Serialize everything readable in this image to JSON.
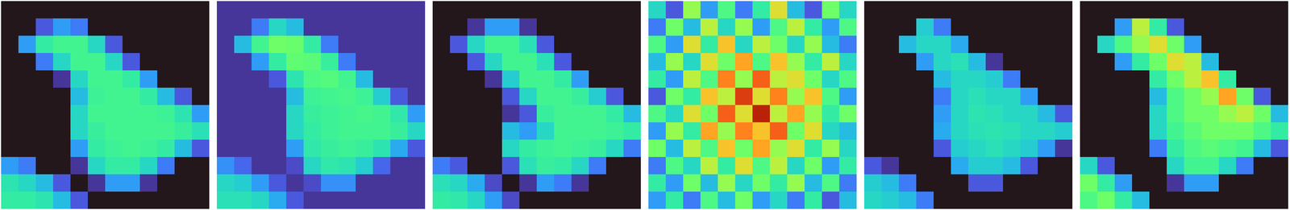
{
  "chart_data": [
    {
      "type": "heatmap",
      "color": "turbo",
      "color_range": [
        0,
        1
      ],
      "tick_labels": false,
      "cells": [
        [
          0,
          0,
          0,
          0,
          0,
          0,
          0,
          0,
          0,
          0,
          0,
          0
        ],
        [
          0,
          0,
          0.1,
          0.2,
          0.15,
          0,
          0,
          0,
          0,
          0,
          0,
          0
        ],
        [
          0,
          0.2,
          0.35,
          0.38,
          0.38,
          0.3,
          0.1,
          0,
          0,
          0,
          0,
          0
        ],
        [
          0,
          0,
          0.15,
          0.3,
          0.38,
          0.38,
          0.3,
          0.1,
          0,
          0,
          0,
          0
        ],
        [
          0,
          0,
          0,
          0.05,
          0.3,
          0.38,
          0.38,
          0.35,
          0.2,
          0,
          0,
          0
        ],
        [
          0,
          0,
          0,
          0,
          0.25,
          0.37,
          0.38,
          0.38,
          0.35,
          0.25,
          0.1,
          0
        ],
        [
          0,
          0,
          0,
          0,
          0.3,
          0.38,
          0.38,
          0.38,
          0.38,
          0.37,
          0.33,
          0.2
        ],
        [
          0,
          0,
          0,
          0,
          0.3,
          0.36,
          0.38,
          0.38,
          0.38,
          0.38,
          0.36,
          0.32
        ],
        [
          0,
          0,
          0,
          0,
          0.2,
          0.35,
          0.37,
          0.38,
          0.37,
          0.35,
          0.25,
          0.1
        ],
        [
          0.2,
          0.15,
          0,
          0,
          0.05,
          0.3,
          0.35,
          0.35,
          0.3,
          0.15,
          0,
          0
        ],
        [
          0.33,
          0.3,
          0.25,
          0.1,
          0,
          0.05,
          0.2,
          0.2,
          0.05,
          0,
          0,
          0
        ],
        [
          0.35,
          0.35,
          0.33,
          0.25,
          0.1,
          0,
          0,
          0,
          0,
          0,
          0,
          0
        ]
      ]
    },
    {
      "type": "heatmap",
      "color": "turbo",
      "color_range": [
        0,
        1
      ],
      "tick_labels": false,
      "cells": [
        [
          0.05,
          0.05,
          0.05,
          0.05,
          0.05,
          0.05,
          0.05,
          0.05,
          0.05,
          0.05,
          0.05,
          0.05
        ],
        [
          0.05,
          0.05,
          0.15,
          0.3,
          0.25,
          0.05,
          0.05,
          0.05,
          0.05,
          0.05,
          0.05,
          0.05
        ],
        [
          0.05,
          0.25,
          0.38,
          0.45,
          0.44,
          0.35,
          0.15,
          0.05,
          0.05,
          0.05,
          0.05,
          0.05
        ],
        [
          0.05,
          0.05,
          0.2,
          0.35,
          0.43,
          0.42,
          0.36,
          0.15,
          0.05,
          0.05,
          0.05,
          0.05
        ],
        [
          0.05,
          0.05,
          0.05,
          0.1,
          0.33,
          0.4,
          0.41,
          0.38,
          0.25,
          0.05,
          0.05,
          0.05
        ],
        [
          0.05,
          0.05,
          0.05,
          0.05,
          0.25,
          0.37,
          0.38,
          0.39,
          0.37,
          0.28,
          0.1,
          0.05
        ],
        [
          0.05,
          0.05,
          0.05,
          0.05,
          0.3,
          0.36,
          0.37,
          0.38,
          0.39,
          0.38,
          0.34,
          0.2
        ],
        [
          0.05,
          0.05,
          0.05,
          0.05,
          0.3,
          0.35,
          0.37,
          0.38,
          0.38,
          0.38,
          0.36,
          0.3
        ],
        [
          0.05,
          0.05,
          0.05,
          0.05,
          0.2,
          0.34,
          0.36,
          0.37,
          0.36,
          0.33,
          0.22,
          0.1
        ],
        [
          0.18,
          0.12,
          0.05,
          0.05,
          0.08,
          0.3,
          0.34,
          0.33,
          0.28,
          0.12,
          0.05,
          0.05
        ],
        [
          0.3,
          0.28,
          0.2,
          0.1,
          0.05,
          0.08,
          0.18,
          0.18,
          0.05,
          0.05,
          0.05,
          0.05
        ],
        [
          0.32,
          0.32,
          0.3,
          0.22,
          0.1,
          0.05,
          0.05,
          0.05,
          0.05,
          0.05,
          0.05,
          0.05
        ]
      ]
    },
    {
      "type": "heatmap",
      "color": "turbo",
      "color_range": [
        0,
        1
      ],
      "tick_labels": false,
      "cells": [
        [
          0,
          0,
          0,
          0,
          0,
          0,
          0,
          0,
          0,
          0,
          0,
          0
        ],
        [
          0,
          0,
          0.05,
          0.2,
          0.2,
          0.05,
          0,
          0,
          0,
          0,
          0,
          0
        ],
        [
          0,
          0.1,
          0.3,
          0.38,
          0.38,
          0.32,
          0.1,
          0,
          0,
          0,
          0,
          0
        ],
        [
          0,
          0,
          0.1,
          0.3,
          0.38,
          0.38,
          0.32,
          0.1,
          0,
          0,
          0,
          0
        ],
        [
          0,
          0,
          0,
          0.05,
          0.28,
          0.38,
          0.38,
          0.35,
          0.2,
          0,
          0,
          0
        ],
        [
          0,
          0,
          0,
          0,
          0.1,
          0.3,
          0.38,
          0.38,
          0.36,
          0.28,
          0.1,
          0
        ],
        [
          0,
          0,
          0,
          0,
          0.05,
          0.1,
          0.36,
          0.38,
          0.38,
          0.38,
          0.35,
          0.25
        ],
        [
          0,
          0,
          0,
          0,
          0.25,
          0.2,
          0.3,
          0.38,
          0.38,
          0.38,
          0.37,
          0.35
        ],
        [
          0,
          0,
          0,
          0,
          0.3,
          0.35,
          0.37,
          0.38,
          0.37,
          0.36,
          0.3,
          0.15
        ],
        [
          0.15,
          0.1,
          0,
          0,
          0.1,
          0.32,
          0.36,
          0.35,
          0.3,
          0.15,
          0,
          0
        ],
        [
          0.32,
          0.3,
          0.22,
          0.08,
          0,
          0.05,
          0.2,
          0.15,
          0.05,
          0,
          0,
          0
        ],
        [
          0.35,
          0.34,
          0.3,
          0.2,
          0.08,
          0,
          0,
          0,
          0,
          0,
          0,
          0
        ]
      ]
    },
    {
      "type": "heatmap",
      "color": "turbo",
      "color_range": [
        0,
        1
      ],
      "tick_labels": false,
      "cells": [
        [
          0.3,
          0.1,
          0.5,
          0.2,
          0.4,
          0.15,
          0.35,
          0.6,
          0.25,
          0.1,
          0.45,
          0.3
        ],
        [
          0.15,
          0.45,
          0.25,
          0.55,
          0.3,
          0.5,
          0.2,
          0.4,
          0.55,
          0.35,
          0.2,
          0.4
        ],
        [
          0.4,
          0.2,
          0.6,
          0.35,
          0.65,
          0.3,
          0.55,
          0.45,
          0.3,
          0.5,
          0.25,
          0.15
        ],
        [
          0.25,
          0.5,
          0.3,
          0.6,
          0.45,
          0.7,
          0.4,
          0.65,
          0.5,
          0.35,
          0.55,
          0.3
        ],
        [
          0.35,
          0.2,
          0.55,
          0.4,
          0.75,
          0.5,
          0.8,
          0.55,
          0.6,
          0.45,
          0.3,
          0.4
        ],
        [
          0.1,
          0.45,
          0.35,
          0.65,
          0.55,
          0.85,
          0.6,
          0.75,
          0.5,
          0.65,
          0.4,
          0.2
        ],
        [
          0.4,
          0.3,
          0.6,
          0.45,
          0.8,
          0.6,
          0.9,
          0.55,
          0.7,
          0.5,
          0.35,
          0.45
        ],
        [
          0.2,
          0.5,
          0.35,
          0.7,
          0.5,
          0.75,
          0.65,
          0.8,
          0.45,
          0.6,
          0.3,
          0.25
        ],
        [
          0.45,
          0.25,
          0.55,
          0.4,
          0.65,
          0.45,
          0.7,
          0.5,
          0.6,
          0.35,
          0.5,
          0.3
        ],
        [
          0.15,
          0.4,
          0.3,
          0.55,
          0.35,
          0.6,
          0.4,
          0.55,
          0.3,
          0.45,
          0.2,
          0.35
        ],
        [
          0.35,
          0.2,
          0.45,
          0.25,
          0.5,
          0.3,
          0.45,
          0.35,
          0.5,
          0.25,
          0.4,
          0.15
        ],
        [
          0.2,
          0.35,
          0.15,
          0.4,
          0.25,
          0.45,
          0.2,
          0.3,
          0.15,
          0.35,
          0.1,
          0.25
        ]
      ]
    },
    {
      "type": "heatmap",
      "color": "turbo",
      "color_range": [
        0,
        1
      ],
      "tick_labels": false,
      "cells": [
        [
          0,
          0,
          0,
          0,
          0,
          0,
          0,
          0,
          0,
          0,
          0,
          0
        ],
        [
          0,
          0,
          0,
          0.28,
          0.15,
          0,
          0,
          0,
          0,
          0,
          0,
          0
        ],
        [
          0,
          0,
          0.25,
          0.3,
          0.3,
          0.22,
          0,
          0,
          0,
          0,
          0,
          0
        ],
        [
          0,
          0,
          0,
          0.2,
          0.3,
          0.32,
          0.25,
          0.05,
          0,
          0,
          0,
          0
        ],
        [
          0,
          0,
          0,
          0,
          0.25,
          0.3,
          0.3,
          0.28,
          0.15,
          0,
          0,
          0
        ],
        [
          0,
          0,
          0,
          0,
          0.15,
          0.3,
          0.32,
          0.3,
          0.3,
          0.2,
          0,
          0
        ],
        [
          0,
          0,
          0,
          0,
          0.2,
          0.3,
          0.33,
          0.32,
          0.3,
          0.3,
          0.25,
          0.1
        ],
        [
          0,
          0,
          0,
          0,
          0.22,
          0.3,
          0.32,
          0.33,
          0.32,
          0.3,
          0.3,
          0.28
        ],
        [
          0,
          0,
          0,
          0,
          0.1,
          0.28,
          0.3,
          0.32,
          0.3,
          0.28,
          0.2,
          0.05
        ],
        [
          0.1,
          0.05,
          0,
          0,
          0,
          0.22,
          0.28,
          0.28,
          0.25,
          0.1,
          0,
          0
        ],
        [
          0.28,
          0.25,
          0.15,
          0,
          0,
          0,
          0.1,
          0.1,
          0,
          0,
          0,
          0
        ],
        [
          0.3,
          0.28,
          0.25,
          0.15,
          0,
          0,
          0,
          0,
          0,
          0,
          0,
          0
        ]
      ]
    },
    {
      "type": "heatmap",
      "color": "turbo",
      "color_range": [
        0,
        1
      ],
      "tick_labels": false,
      "cells": [
        [
          0,
          0,
          0,
          0,
          0,
          0,
          0,
          0,
          0,
          0,
          0,
          0
        ],
        [
          0,
          0,
          0.2,
          0.55,
          0.35,
          0.1,
          0,
          0,
          0,
          0,
          0,
          0
        ],
        [
          0,
          0.3,
          0.4,
          0.5,
          0.6,
          0.45,
          0.2,
          0,
          0,
          0,
          0,
          0
        ],
        [
          0,
          0,
          0.2,
          0.35,
          0.45,
          0.6,
          0.55,
          0.25,
          0,
          0,
          0,
          0
        ],
        [
          0,
          0,
          0,
          0,
          0.35,
          0.45,
          0.55,
          0.65,
          0.35,
          0,
          0,
          0
        ],
        [
          0,
          0,
          0,
          0,
          0.25,
          0.4,
          0.45,
          0.5,
          0.7,
          0.45,
          0.1,
          0
        ],
        [
          0,
          0,
          0,
          0,
          0.3,
          0.4,
          0.45,
          0.45,
          0.5,
          0.55,
          0.45,
          0.25
        ],
        [
          0,
          0,
          0,
          0,
          0.3,
          0.38,
          0.42,
          0.45,
          0.45,
          0.45,
          0.4,
          0.35
        ],
        [
          0,
          0,
          0,
          0,
          0.15,
          0.35,
          0.4,
          0.42,
          0.4,
          0.38,
          0.25,
          0.1
        ],
        [
          0.3,
          0.1,
          0,
          0,
          0,
          0.3,
          0.38,
          0.38,
          0.3,
          0.15,
          0,
          0
        ],
        [
          0.45,
          0.35,
          0.2,
          0,
          0,
          0.05,
          0.2,
          0.2,
          0,
          0,
          0,
          0
        ],
        [
          0.4,
          0.45,
          0.35,
          0.25,
          0,
          0,
          0,
          0,
          0,
          0,
          0,
          0
        ]
      ]
    }
  ]
}
